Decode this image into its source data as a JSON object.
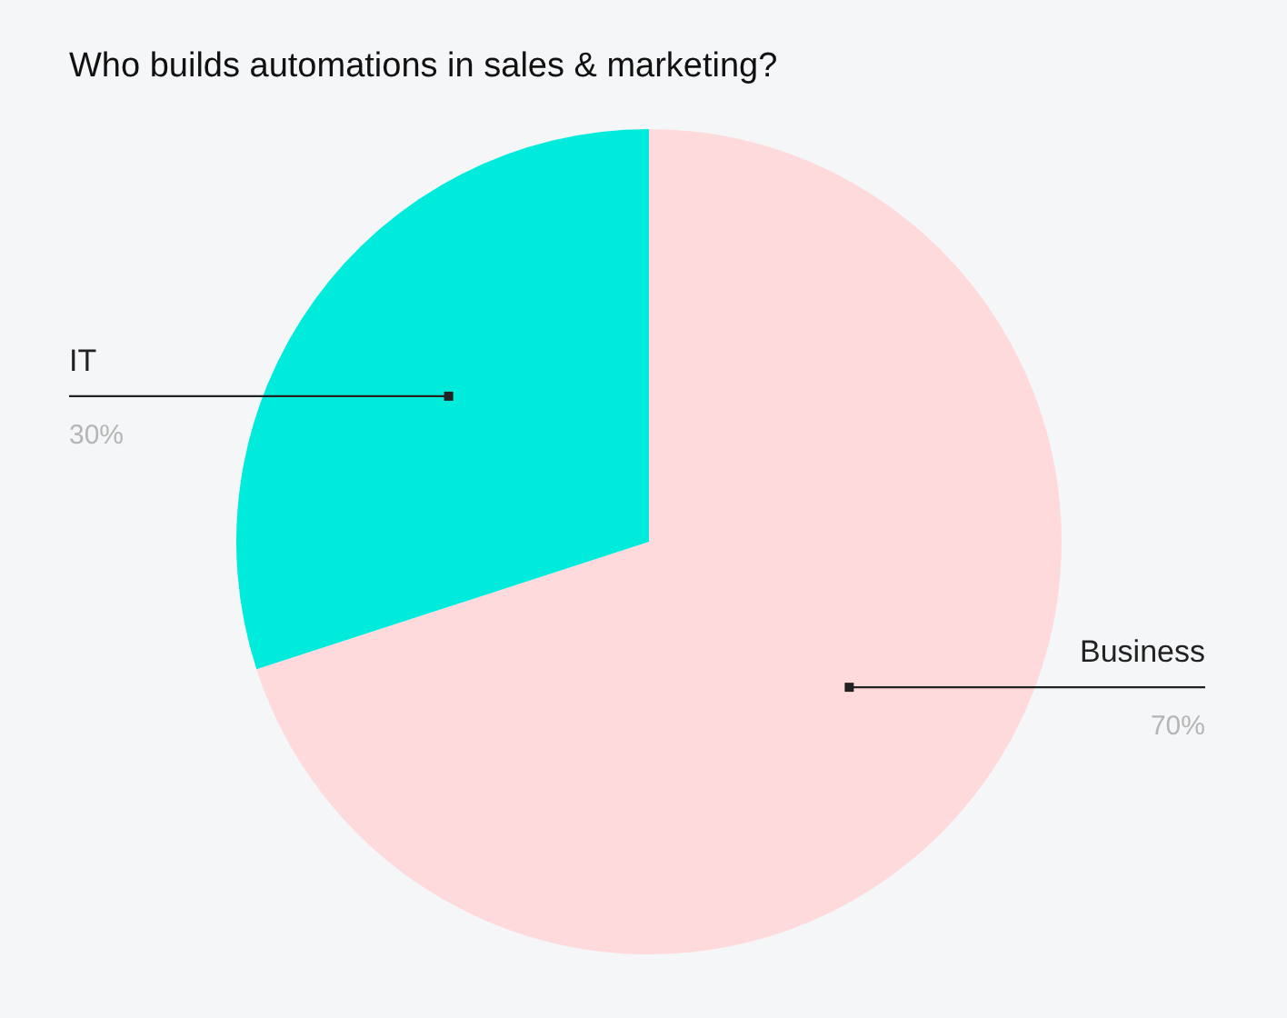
{
  "chart_data": {
    "type": "pie",
    "title": "Who builds automations in sales & marketing?",
    "categories": [
      "Business",
      "IT"
    ],
    "values": [
      70,
      30
    ],
    "colors": [
      "#ffdadd",
      "#00ebdc"
    ],
    "value_labels": [
      "70%",
      "30%"
    ],
    "legend": false
  }
}
